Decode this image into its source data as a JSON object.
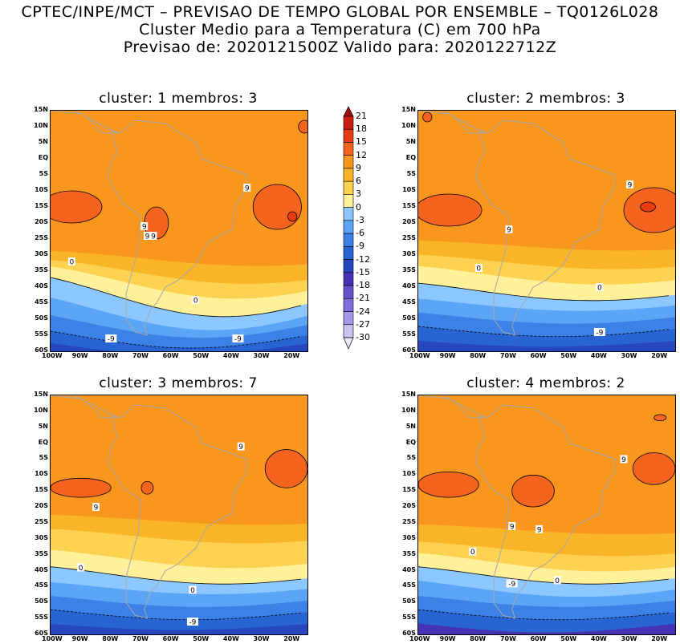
{
  "header": {
    "line1": "CPTEC/INPE/MCT – PREVISAO DE TEMPO GLOBAL POR ENSEMBLE – TQ0126L028",
    "line2": "Cluster Medio para a Temperatura (C) em 700 hPa",
    "line3": "Previsao de: 2020121500Z   Valido para: 2020122712Z"
  },
  "lat_ticks": [
    "15N",
    "10N",
    "5N",
    "EQ",
    "5S",
    "10S",
    "15S",
    "20S",
    "25S",
    "30S",
    "35S",
    "40S",
    "45S",
    "50S",
    "55S",
    "60S"
  ],
  "lon_ticks": [
    "100W",
    "90W",
    "80W",
    "70W",
    "60W",
    "50W",
    "40W",
    "30W",
    "20W"
  ],
  "legend": {
    "labels": [
      "21",
      "18",
      "15",
      "12",
      "9",
      "6",
      "3",
      "0",
      "-3",
      "-6",
      "-9",
      "-12",
      "-15",
      "-18",
      "-21",
      "-24",
      "-27",
      "-30"
    ],
    "colors": [
      "#a01010",
      "#c81e14",
      "#e63c14",
      "#f4641e",
      "#f8961e",
      "#fab428",
      "#fcd250",
      "#fff09a",
      "#8cc8ff",
      "#5aa5f5",
      "#3c82e6",
      "#2864d2",
      "#2846be",
      "#4632b4",
      "#6450c8",
      "#7d6edc",
      "#a596e6",
      "#c8c3f0",
      "#e6e6fa"
    ]
  },
  "panels": [
    {
      "title": "cluster: 1   membros: 3",
      "contour_labels": [
        "9",
        "9",
        "9",
        "9",
        "0",
        "0",
        "-9",
        "-9"
      ]
    },
    {
      "title": "cluster: 2   membros: 3",
      "contour_labels": [
        "9",
        "9",
        "0",
        "0",
        "-9"
      ]
    },
    {
      "title": "cluster: 3   membros: 7",
      "contour_labels": [
        "9",
        "9",
        "0",
        "0",
        "-9"
      ]
    },
    {
      "title": "cluster: 4   membros: 2",
      "contour_labels": [
        "9",
        "9",
        "9",
        "0",
        "0",
        "-9"
      ]
    }
  ]
}
